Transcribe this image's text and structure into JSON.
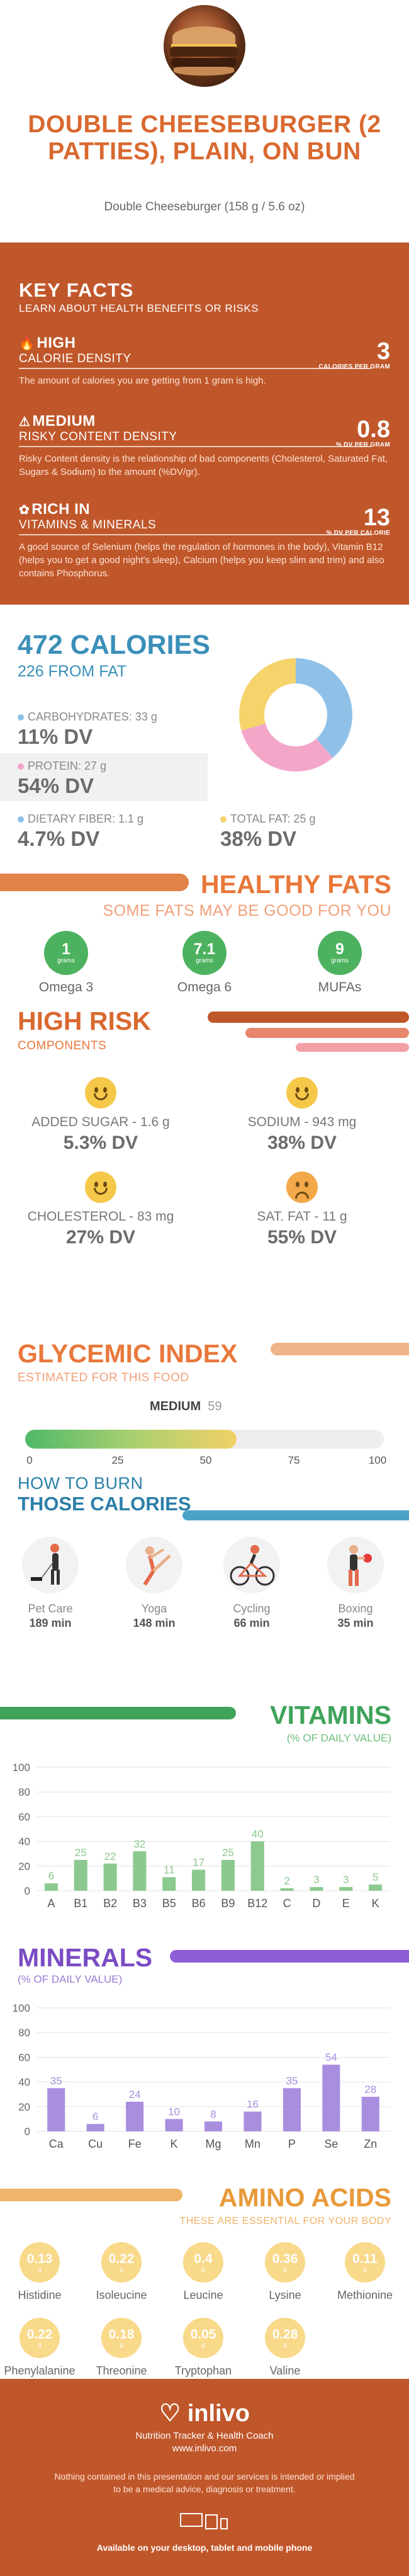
{
  "header": {
    "title": "DOUBLE CHEESEBURGER (2 PATTIES), PLAIN, ON BUN",
    "subtitle": "Double Cheeseburger (158 g / 5.6 oz)"
  },
  "key_facts": {
    "title": "KEY FACTS",
    "subtitle": "LEARN ABOUT HEALTH BENEFITS OR RISKS",
    "items": [
      {
        "h1": "HIGH",
        "h2": "CALORIE DENSITY",
        "value": "3",
        "unit": "CALORIES PER GRAM",
        "desc": "The amount of calories you are getting from 1 gram is high."
      },
      {
        "h1": "MEDIUM",
        "h2": "RISKY CONTENT DENSITY",
        "value": "0.8",
        "unit": "% DV PER GRAM",
        "desc": "Risky Content density is the relationship of bad components (Cholesterol, Saturated Fat, Sugars & Sodium) to the amount (%DV/gr)."
      },
      {
        "h1": "RICH IN",
        "h2": "VITAMINS & MINERALS",
        "value": "13",
        "unit": "% DV PER CALORIE",
        "desc": "A good source of Selenium (helps the regulation of hormones in the body), Vitamin B12 (helps you to get a good night's sleep), Calcium (helps you keep slim and trim) and also contains Phosphorus."
      }
    ]
  },
  "calories": {
    "title": "472 CALORIES",
    "subtitle": "226 FROM FAT",
    "macros": [
      {
        "label": "CARBOHYDRATES: 33 g",
        "dv": "11% DV",
        "color": "#8fc1e8"
      },
      {
        "label": "PROTEIN: 27 g",
        "dv": "54% DV",
        "color": "#f4a6c9"
      },
      {
        "label": "DIETARY FIBER: 1.1 g",
        "dv": "4.7% DV",
        "color": "#8fc1e8"
      },
      {
        "label": "TOTAL FAT: 25 g",
        "dv": "38% DV",
        "color": "#f6d36b"
      }
    ]
  },
  "healthy_fats": {
    "title": "HEALTHY FATS",
    "subtitle": "SOME FATS MAY BE GOOD FOR YOU",
    "unit": "grams",
    "items": [
      {
        "value": "1",
        "label": "Omega 3"
      },
      {
        "value": "7.1",
        "label": "Omega 6"
      },
      {
        "value": "9",
        "label": "MUFAs"
      }
    ]
  },
  "high_risk": {
    "title": "HIGH RISK",
    "subtitle": "COMPONENTS",
    "items": [
      {
        "label": "ADDED SUGAR - 1.6 g",
        "dv": "5.3% DV",
        "face": "happy"
      },
      {
        "label": "SODIUM - 943 mg",
        "dv": "38% DV",
        "face": "happy"
      },
      {
        "label": "CHOLESTEROL - 83 mg",
        "dv": "27% DV",
        "face": "happy"
      },
      {
        "label": "SAT. FAT - 11 g",
        "dv": "55% DV",
        "face": "sad"
      }
    ]
  },
  "glycemic": {
    "title": "GLYCEMIC INDEX",
    "subtitle": "ESTIMATED FOR THIS FOOD",
    "level": "MEDIUM",
    "value": "59",
    "value_fraction": 0.59,
    "ticks": [
      "0",
      "25",
      "50",
      "75",
      "100"
    ]
  },
  "burn": {
    "title1": "HOW TO BURN",
    "title2": "THOSE CALORIES",
    "activities": [
      {
        "label": "Pet Care",
        "minutes": "189 min",
        "icon": "dog-walking-icon"
      },
      {
        "label": "Yoga",
        "minutes": "148 min",
        "icon": "yoga-icon"
      },
      {
        "label": "Cycling",
        "minutes": "66 min",
        "icon": "cycling-icon"
      },
      {
        "label": "Boxing",
        "minutes": "35 min",
        "icon": "boxing-icon"
      }
    ]
  },
  "vitamins": {
    "title": "VITAMINS",
    "subtitle": "(% OF DAILY VALUE)"
  },
  "minerals": {
    "title": "MINERALS",
    "subtitle": "(% OF DAILY VALUE)"
  },
  "chart_data": [
    {
      "type": "bar",
      "categories": [
        "A",
        "B1",
        "B2",
        "B3",
        "B5",
        "B6",
        "B9",
        "B12",
        "C",
        "D",
        "E",
        "K"
      ],
      "values": [
        6,
        25,
        22,
        32,
        11,
        17,
        25,
        40,
        2,
        3,
        3,
        5
      ],
      "ylim": [
        0,
        100
      ],
      "yticks": [
        0,
        20,
        40,
        60,
        80,
        100
      ],
      "color": "#8cc98f",
      "grid": true
    },
    {
      "type": "bar",
      "categories": [
        "Ca",
        "Cu",
        "Fe",
        "K",
        "Mg",
        "Mn",
        "P",
        "Se",
        "Zn"
      ],
      "values": [
        35,
        6,
        24,
        10,
        8,
        16,
        35,
        54,
        28
      ],
      "ylim": [
        0,
        100
      ],
      "yticks": [
        0,
        20,
        40,
        60,
        80,
        100
      ],
      "color": "#a98ee0",
      "grid": true
    }
  ],
  "amino": {
    "title": "AMINO ACIDS",
    "subtitle": "THESE ARE ESSENTIAL FOR YOUR BODY",
    "unit": "g",
    "items": [
      {
        "value": "0.13",
        "label": "Histidine"
      },
      {
        "value": "0.22",
        "label": "Isoleucine"
      },
      {
        "value": "0.4",
        "label": "Leucine"
      },
      {
        "value": "0.36",
        "label": "Lysine"
      },
      {
        "value": "0.11",
        "label": "Methionine"
      },
      {
        "value": "0.22",
        "label": "Phenylalanine"
      },
      {
        "value": "0.18",
        "label": "Threonine"
      },
      {
        "value": "0.05",
        "label": "Tryptophan"
      },
      {
        "value": "0.28",
        "label": "Valine"
      }
    ]
  },
  "footer": {
    "logo": "inlivo",
    "tagline": "Nutrition Tracker & Health Coach",
    "url": "www.inlivo.com",
    "disclaimer": "Nothing contained in this presentation and our services is intended or implied to be a medical advice, diagnosis or treatment.",
    "available": "Available on your desktop, tablet and mobile phone"
  }
}
